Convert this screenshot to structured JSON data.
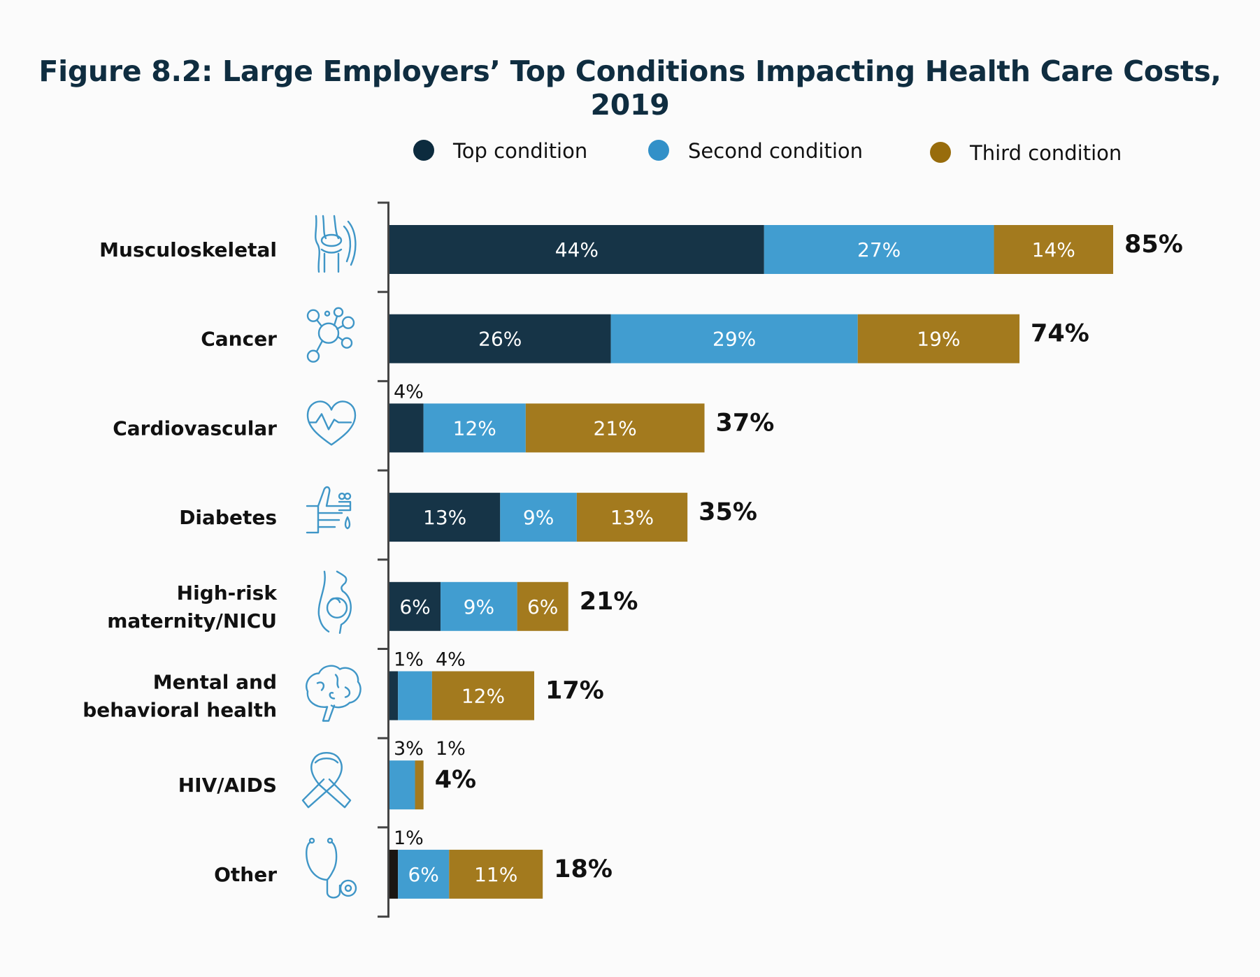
{
  "chart_data": {
    "type": "bar",
    "orientation": "horizontal",
    "stacked": true,
    "title": "Figure 8.2: Large Employers’ Top Conditions Impacting Health Care Costs, 2019",
    "xlabel": "",
    "ylabel": "",
    "xlim": [
      0,
      85
    ],
    "grid": false,
    "legend_position": "top",
    "categories": [
      "Musculoskeletal",
      "Cancer",
      "Cardiovascular",
      "Diabetes",
      "High-risk maternity/NICU",
      "Mental and behavioral health",
      "HIV/AIDS",
      "Other"
    ],
    "category_label_lines": [
      [
        "Musculoskeletal"
      ],
      [
        "Cancer"
      ],
      [
        "Cardiovascular"
      ],
      [
        "Diabetes"
      ],
      [
        "High-risk",
        "maternity/NICU"
      ],
      [
        "Mental and",
        "behavioral health"
      ],
      [
        "HIV/AIDS"
      ],
      [
        "Other"
      ]
    ],
    "category_icons": [
      "knee-joint-icon",
      "molecule-icon",
      "heartbeat-icon",
      "finger-prick-icon",
      "pregnancy-icon",
      "brain-icon",
      "awareness-ribbon-icon",
      "stethoscope-icon"
    ],
    "series": [
      {
        "name": "Top condition",
        "color": "#163447",
        "values": [
          44,
          26,
          4,
          13,
          6,
          1,
          0,
          1
        ]
      },
      {
        "name": "Second condition",
        "color": "#419dd0",
        "values": [
          27,
          29,
          12,
          9,
          9,
          4,
          3,
          6
        ]
      },
      {
        "name": "Third condition",
        "color": "#a37a1e",
        "values": [
          14,
          19,
          21,
          13,
          6,
          12,
          1,
          11
        ]
      }
    ],
    "totals": [
      85,
      74,
      37,
      35,
      21,
      17,
      4,
      18
    ],
    "value_suffix": "%",
    "legend_colors": [
      "#0c2b3e",
      "#3290c8",
      "#986c0c"
    ]
  }
}
